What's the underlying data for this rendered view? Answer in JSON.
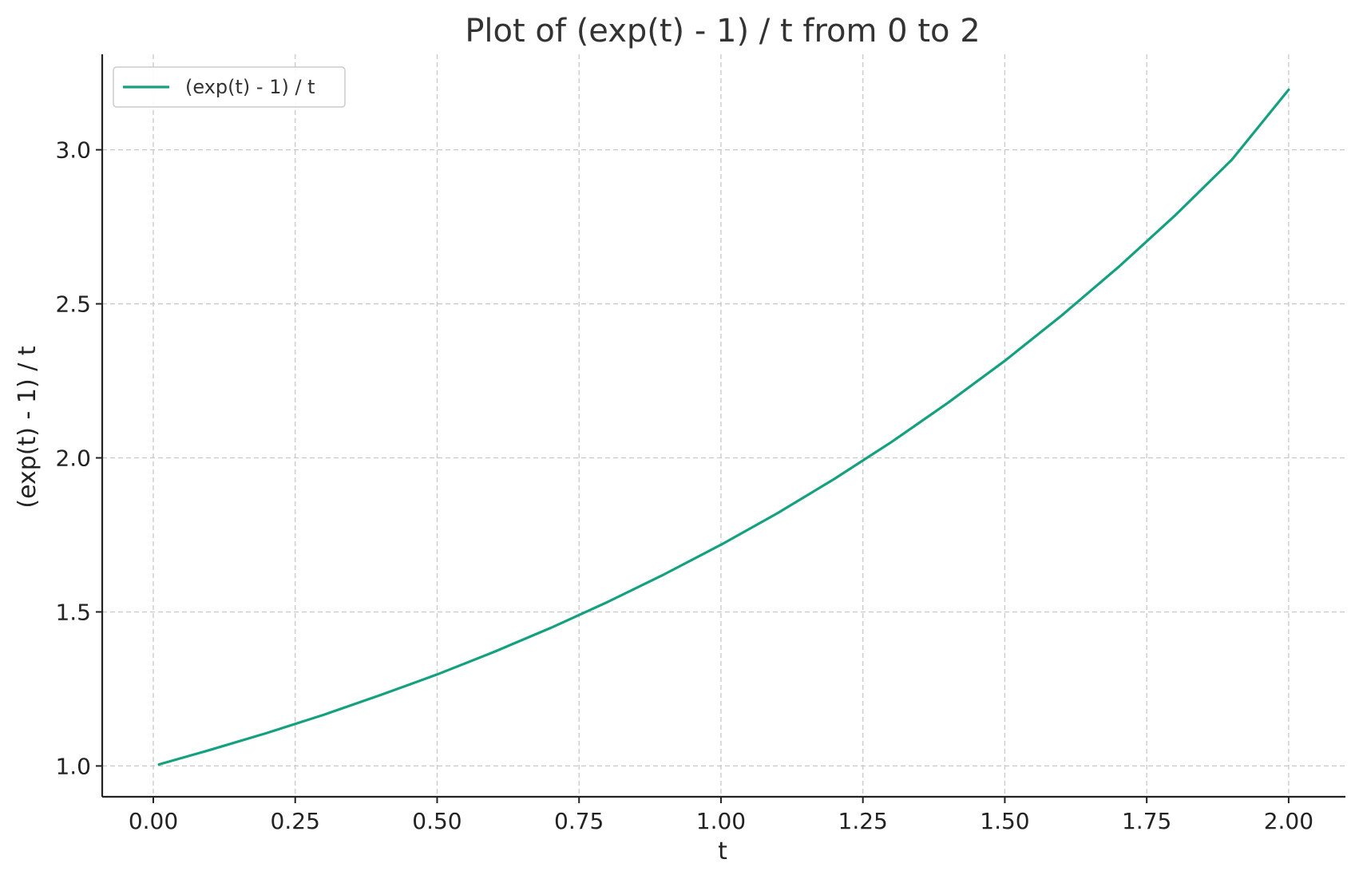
{
  "chart_data": {
    "type": "line",
    "title": "Plot of (exp(t) - 1) / t from 0 to 2",
    "xlabel": "t",
    "ylabel": "(exp(t) - 1) / t",
    "xlim": [
      -0.09,
      2.1
    ],
    "ylim": [
      0.9,
      3.31
    ],
    "xticks": [
      0.0,
      0.25,
      0.5,
      0.75,
      1.0,
      1.25,
      1.5,
      1.75,
      2.0
    ],
    "xtick_labels": [
      "0.00",
      "0.25",
      "0.50",
      "0.75",
      "1.00",
      "1.25",
      "1.50",
      "1.75",
      "2.00"
    ],
    "yticks": [
      1.0,
      1.5,
      2.0,
      2.5,
      3.0
    ],
    "ytick_labels": [
      "1.0",
      "1.5",
      "2.0",
      "2.5",
      "3.0"
    ],
    "grid": true,
    "legend_position": "upper-left",
    "series": [
      {
        "name": "(exp(t) - 1) / t",
        "color": "#15a07f",
        "x": [
          0.01,
          0.1,
          0.2,
          0.3,
          0.4,
          0.5,
          0.6,
          0.7,
          0.8,
          0.9,
          1.0,
          1.1,
          1.2,
          1.3,
          1.4,
          1.5,
          1.6,
          1.7,
          1.8,
          1.9,
          2.0
        ],
        "y": [
          1.005,
          1.052,
          1.107,
          1.166,
          1.23,
          1.297,
          1.37,
          1.448,
          1.532,
          1.622,
          1.718,
          1.821,
          1.932,
          2.051,
          2.179,
          2.315,
          2.462,
          2.619,
          2.787,
          2.968,
          3.195
        ]
      }
    ]
  }
}
